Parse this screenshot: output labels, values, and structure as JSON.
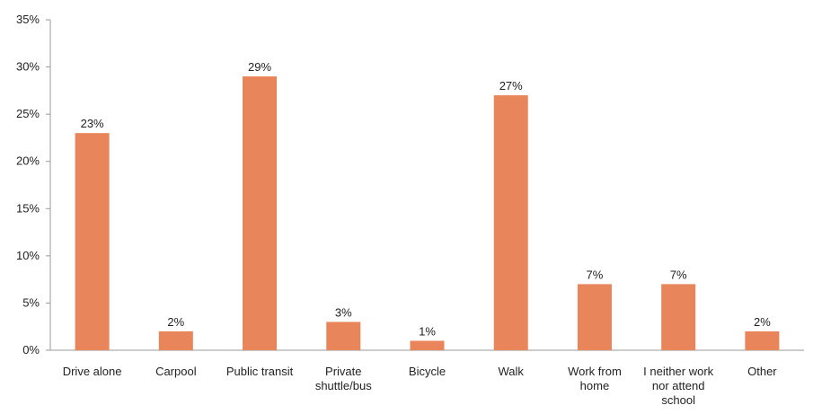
{
  "chart_data": {
    "type": "bar",
    "title": "",
    "xlabel": "",
    "ylabel": "",
    "ylim": [
      0,
      35
    ],
    "yticks": [
      "0%",
      "5%",
      "10%",
      "15%",
      "20%",
      "25%",
      "30%",
      "35%"
    ],
    "grid": false,
    "bar_color": "#E8855A",
    "categories": [
      [
        "Drive alone"
      ],
      [
        "Carpool"
      ],
      [
        "Public transit"
      ],
      [
        "Private",
        "shuttle/bus"
      ],
      [
        "Bicycle"
      ],
      [
        "Walk"
      ],
      [
        "Work from",
        "home"
      ],
      [
        "I neither work",
        "nor attend",
        "school"
      ],
      [
        "Other"
      ]
    ],
    "values": [
      23,
      2,
      29,
      3,
      1,
      27,
      7,
      7,
      2
    ],
    "value_labels": [
      "23%",
      "2%",
      "29%",
      "3%",
      "1%",
      "27%",
      "7%",
      "7%",
      "2%"
    ]
  }
}
